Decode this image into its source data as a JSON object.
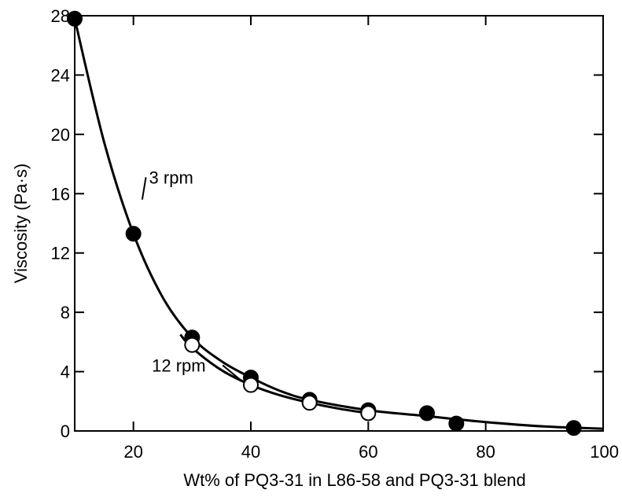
{
  "chart_data": {
    "type": "scatter",
    "title": "",
    "xlabel": "Wt% of PQ3-31 in L86-58 and PQ3-31 blend",
    "ylabel": "Viscosity (Pa·s)",
    "xlim": [
      10,
      100
    ],
    "ylim": [
      0,
      28
    ],
    "xticks": [
      20,
      40,
      60,
      80,
      100
    ],
    "yticks": [
      0,
      4,
      8,
      12,
      16,
      20,
      24,
      28
    ],
    "grid": false,
    "series": [
      {
        "name": "3 rpm",
        "marker": "filled-circle",
        "color": "#000000",
        "points": [
          {
            "x": 10,
            "y": 27.8
          },
          {
            "x": 20,
            "y": 13.3
          },
          {
            "x": 30,
            "y": 6.3
          },
          {
            "x": 40,
            "y": 3.6
          },
          {
            "x": 50,
            "y": 2.1
          },
          {
            "x": 60,
            "y": 1.4
          },
          {
            "x": 70,
            "y": 1.2
          },
          {
            "x": 75,
            "y": 0.5
          },
          {
            "x": 95,
            "y": 0.2
          }
        ],
        "curve": [
          {
            "x": 10,
            "y": 27.8
          },
          {
            "x": 15,
            "y": 19.5
          },
          {
            "x": 20,
            "y": 13.3
          },
          {
            "x": 25,
            "y": 9.0
          },
          {
            "x": 30,
            "y": 6.3
          },
          {
            "x": 35,
            "y": 4.7
          },
          {
            "x": 40,
            "y": 3.6
          },
          {
            "x": 45,
            "y": 2.7
          },
          {
            "x": 50,
            "y": 2.1
          },
          {
            "x": 60,
            "y": 1.4
          },
          {
            "x": 70,
            "y": 1.0
          },
          {
            "x": 80,
            "y": 0.6
          },
          {
            "x": 90,
            "y": 0.3
          },
          {
            "x": 100,
            "y": 0.15
          }
        ]
      },
      {
        "name": "12 rpm",
        "marker": "open-circle",
        "color": "#000000",
        "points": [
          {
            "x": 30,
            "y": 5.8
          },
          {
            "x": 40,
            "y": 3.1
          },
          {
            "x": 50,
            "y": 1.9
          },
          {
            "x": 60,
            "y": 1.2
          }
        ],
        "curve": [
          {
            "x": 28,
            "y": 6.5
          },
          {
            "x": 30,
            "y": 5.6
          },
          {
            "x": 35,
            "y": 4.1
          },
          {
            "x": 40,
            "y": 3.1
          },
          {
            "x": 45,
            "y": 2.4
          },
          {
            "x": 50,
            "y": 1.9
          },
          {
            "x": 55,
            "y": 1.5
          },
          {
            "x": 60,
            "y": 1.2
          }
        ]
      }
    ],
    "annotations": [
      {
        "text": "3 rpm",
        "series": "3 rpm",
        "x": 24,
        "y": 17.0
      },
      {
        "text": "12 rpm",
        "series": "12 rpm",
        "x": 36,
        "y": 3.9
      }
    ]
  }
}
